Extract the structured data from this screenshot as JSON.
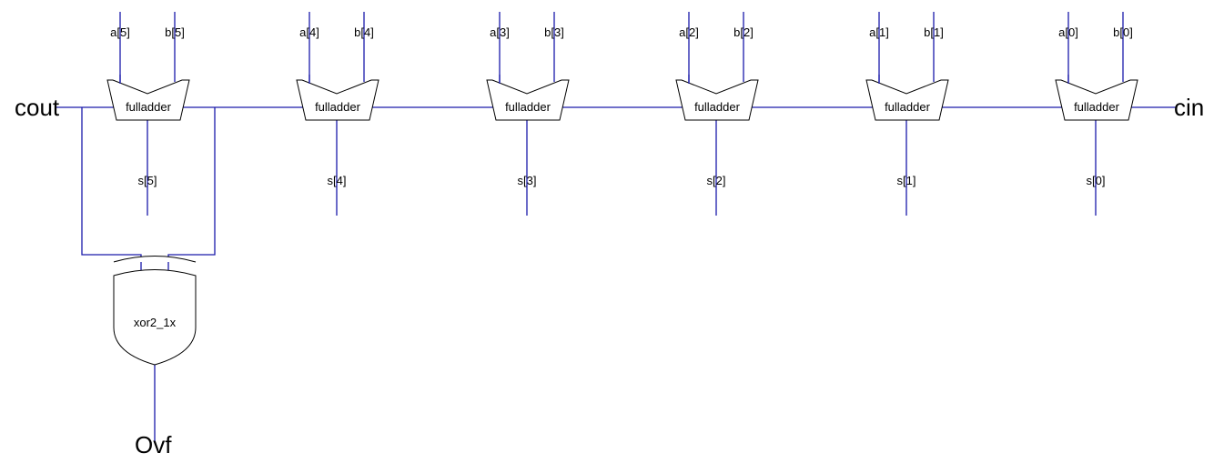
{
  "colors": {
    "wire": "#1a1aaa",
    "shape_stroke": "#000000",
    "background": "#ffffff"
  },
  "ports": {
    "cout": "cout",
    "cin": "cin",
    "ovf": "Ovf"
  },
  "adders": [
    {
      "label": "fulladder",
      "a": "a[5]",
      "b": "b[5]",
      "s": "s[5]"
    },
    {
      "label": "fulladder",
      "a": "a[4]",
      "b": "b[4]",
      "s": "s[4]"
    },
    {
      "label": "fulladder",
      "a": "a[3]",
      "b": "b[3]",
      "s": "s[3]"
    },
    {
      "label": "fulladder",
      "a": "a[2]",
      "b": "b[2]",
      "s": "s[2]"
    },
    {
      "label": "fulladder",
      "a": "a[1]",
      "b": "b[1]",
      "s": "s[1]"
    },
    {
      "label": "fulladder",
      "a": "a[0]",
      "b": "b[0]",
      "s": "s[0]"
    }
  ],
  "xor_gate": {
    "label": "xor2_1x"
  }
}
